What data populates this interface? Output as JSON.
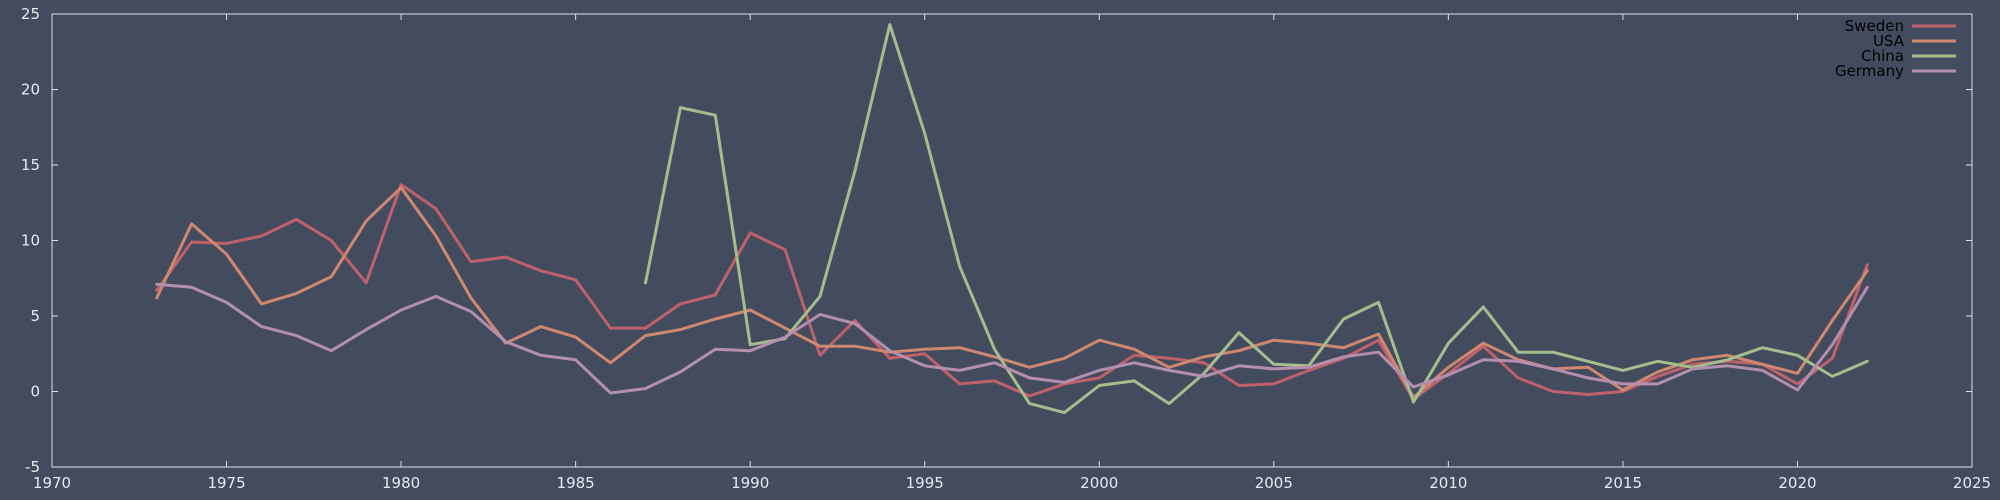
{
  "chart_data": {
    "type": "line",
    "title": "",
    "xlabel": "",
    "ylabel": "",
    "xlim": [
      1970,
      2025
    ],
    "ylim": [
      -5,
      25
    ],
    "xticks": [
      1970,
      1975,
      1980,
      1985,
      1990,
      1995,
      2000,
      2005,
      2010,
      2015,
      2020,
      2025
    ],
    "yticks": [
      -5,
      0,
      5,
      10,
      15,
      20,
      25
    ],
    "grid": false,
    "legend_position": "top-right",
    "series": [
      {
        "name": "Sweden",
        "color": "#bf616a",
        "x": [
          1973,
          1974,
          1975,
          1976,
          1977,
          1978,
          1979,
          1980,
          1981,
          1982,
          1983,
          1984,
          1985,
          1986,
          1987,
          1988,
          1989,
          1990,
          1991,
          1992,
          1993,
          1994,
          1995,
          1996,
          1997,
          1998,
          1999,
          2000,
          2001,
          2002,
          2003,
          2004,
          2005,
          2006,
          2007,
          2008,
          2009,
          2010,
          2011,
          2012,
          2013,
          2014,
          2015,
          2016,
          2017,
          2018,
          2019,
          2020,
          2021,
          2022
        ],
        "values": [
          6.7,
          9.9,
          9.8,
          10.3,
          11.4,
          10.0,
          7.2,
          13.7,
          12.1,
          8.6,
          8.9,
          8.0,
          7.4,
          4.2,
          4.2,
          5.8,
          6.4,
          10.5,
          9.4,
          2.4,
          4.7,
          2.2,
          2.5,
          0.5,
          0.7,
          -0.3,
          0.5,
          0.9,
          2.4,
          2.2,
          1.9,
          0.4,
          0.5,
          1.4,
          2.2,
          3.4,
          -0.5,
          1.2,
          3.0,
          0.9,
          0.0,
          -0.2,
          0.0,
          1.0,
          1.8,
          2.0,
          1.8,
          0.5,
          2.2,
          8.4
        ]
      },
      {
        "name": "USA",
        "color": "#d08770",
        "x": [
          1973,
          1974,
          1975,
          1976,
          1977,
          1978,
          1979,
          1980,
          1981,
          1982,
          1983,
          1984,
          1985,
          1986,
          1987,
          1988,
          1989,
          1990,
          1991,
          1992,
          1993,
          1994,
          1995,
          1996,
          1997,
          1998,
          1999,
          2000,
          2001,
          2002,
          2003,
          2004,
          2005,
          2006,
          2007,
          2008,
          2009,
          2010,
          2011,
          2012,
          2013,
          2014,
          2015,
          2016,
          2017,
          2018,
          2019,
          2020,
          2021,
          2022
        ],
        "values": [
          6.2,
          11.1,
          9.1,
          5.8,
          6.5,
          7.6,
          11.3,
          13.5,
          10.3,
          6.2,
          3.2,
          4.3,
          3.6,
          1.9,
          3.7,
          4.1,
          4.8,
          5.4,
          4.2,
          3.0,
          3.0,
          2.6,
          2.8,
          2.9,
          2.3,
          1.6,
          2.2,
          3.4,
          2.8,
          1.6,
          2.3,
          2.7,
          3.4,
          3.2,
          2.9,
          3.8,
          -0.4,
          1.6,
          3.2,
          2.1,
          1.5,
          1.6,
          0.1,
          1.3,
          2.1,
          2.4,
          1.8,
          1.2,
          4.7,
          8.0
        ]
      },
      {
        "name": "China",
        "color": "#a3be8c",
        "x": [
          1987,
          1988,
          1989,
          1990,
          1991,
          1992,
          1993,
          1994,
          1995,
          1996,
          1997,
          1998,
          1999,
          2000,
          2001,
          2002,
          2003,
          2004,
          2005,
          2006,
          2007,
          2008,
          2009,
          2010,
          2011,
          2012,
          2013,
          2014,
          2015,
          2016,
          2017,
          2018,
          2019,
          2020,
          2021,
          2022
        ],
        "values": [
          7.2,
          18.8,
          18.3,
          3.1,
          3.5,
          6.3,
          14.6,
          24.3,
          17.1,
          8.3,
          2.8,
          -0.8,
          -1.4,
          0.4,
          0.7,
          -0.8,
          1.2,
          3.9,
          1.8,
          1.7,
          4.8,
          5.9,
          -0.7,
          3.2,
          5.6,
          2.6,
          2.6,
          2.0,
          1.4,
          2.0,
          1.6,
          2.1,
          2.9,
          2.4,
          1.0,
          2.0
        ]
      },
      {
        "name": "Germany",
        "color": "#b48ead",
        "x": [
          1973,
          1974,
          1975,
          1976,
          1977,
          1978,
          1979,
          1980,
          1981,
          1982,
          1983,
          1984,
          1985,
          1986,
          1987,
          1988,
          1989,
          1990,
          1991,
          1992,
          1993,
          1994,
          1995,
          1996,
          1997,
          1998,
          1999,
          2000,
          2001,
          2002,
          2003,
          2004,
          2005,
          2006,
          2007,
          2008,
          2009,
          2010,
          2011,
          2012,
          2013,
          2014,
          2015,
          2016,
          2017,
          2018,
          2019,
          2020,
          2021,
          2022
        ],
        "values": [
          7.1,
          6.9,
          5.9,
          4.3,
          3.7,
          2.7,
          4.1,
          5.4,
          6.3,
          5.3,
          3.3,
          2.4,
          2.1,
          -0.1,
          0.2,
          1.3,
          2.8,
          2.7,
          3.6,
          5.1,
          4.5,
          2.7,
          1.7,
          1.4,
          1.9,
          0.9,
          0.6,
          1.4,
          1.9,
          1.4,
          1.0,
          1.7,
          1.5,
          1.6,
          2.3,
          2.6,
          0.3,
          1.1,
          2.1,
          2.0,
          1.5,
          0.9,
          0.5,
          0.5,
          1.5,
          1.7,
          1.4,
          0.1,
          3.1,
          6.9
        ]
      }
    ]
  }
}
